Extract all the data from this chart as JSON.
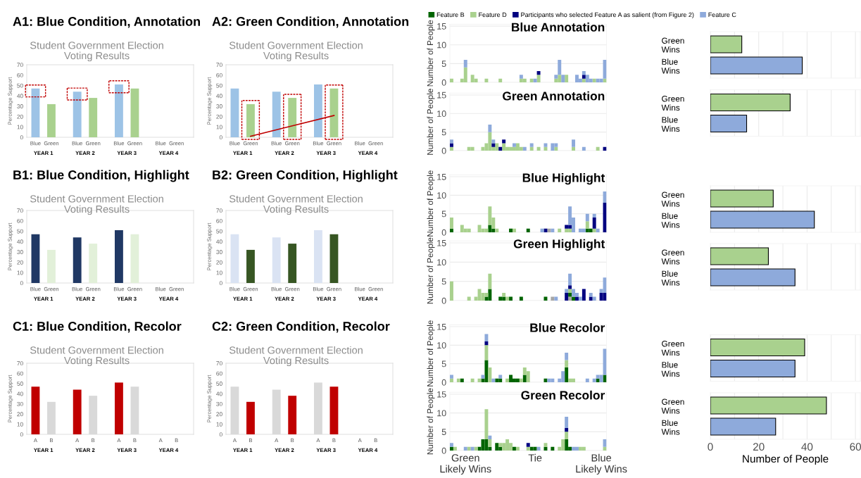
{
  "chart_data": [
    {
      "type": "bar",
      "title": "A1: Blue Condition, Annotation",
      "subtitle": "Student Government Election\nVoting Results",
      "ylabel": "Percentage Support",
      "categories": [
        "YEAR 1",
        "YEAR 2",
        "YEAR 3",
        "YEAR 4"
      ],
      "ylim": [
        0,
        70
      ],
      "yticks": [
        0,
        10,
        20,
        30,
        40,
        50,
        60,
        70
      ],
      "series": [
        {
          "name": "Blue",
          "color": "#9dc3e6",
          "values": [
            47,
            44,
            51,
            null
          ],
          "marker": "square"
        },
        {
          "name": "Green",
          "color": "#a9d18e",
          "values": [
            32,
            38,
            47,
            null
          ]
        }
      ]
    },
    {
      "type": "bar",
      "title": "A2: Green Condition, Annotation",
      "subtitle": "Student Government Election\nVoting Results",
      "ylabel": "Percentage Support",
      "categories": [
        "YEAR 1",
        "YEAR 2",
        "YEAR 3",
        "YEAR 4"
      ],
      "ylim": [
        0,
        70
      ],
      "yticks": [
        0,
        10,
        20,
        30,
        40,
        50,
        60,
        70
      ],
      "series": [
        {
          "name": "Blue",
          "color": "#9dc3e6",
          "values": [
            47,
            44,
            51,
            null
          ]
        },
        {
          "name": "Green",
          "color": "#a9d18e",
          "values": [
            32,
            38,
            47,
            null
          ],
          "line_style": "dashed"
        },
        {
          "type": "line",
          "color": "#c00000",
          "values": [
            1,
            11,
            21,
            null
          ]
        }
      ]
    },
    {
      "type": "bar",
      "stacked": true,
      "title": "Blue Annotation",
      "ylabel": "Number of People",
      "categories": [
        null,
        null,
        null,
        null,
        null,
        null,
        null,
        null,
        null,
        null,
        null,
        null,
        null,
        null,
        null,
        null,
        null,
        null,
        null,
        null,
        null,
        null,
        null,
        null,
        null,
        null,
        null,
        null,
        null,
        null,
        null,
        null,
        null,
        null,
        null,
        null,
        null,
        null,
        null,
        null,
        null,
        null,
        null,
        null,
        null
      ],
      "ylim": [
        0,
        15.5
      ],
      "yticks": [
        0,
        5,
        10,
        15
      ],
      "grid": "y",
      "tick_labels": "y",
      "legend": "top",
      "series": [
        {
          "name": "Feature B",
          "color": "#006400",
          "values": [
            0,
            0,
            0,
            0,
            0,
            0,
            0,
            0,
            0,
            0,
            0,
            0,
            0,
            0,
            0,
            0,
            0,
            0,
            0,
            0,
            0,
            0,
            0,
            0,
            0,
            0,
            0,
            0,
            0,
            0,
            0,
            0,
            0,
            0,
            0,
            0,
            0,
            0,
            0,
            0,
            0,
            0,
            0,
            0,
            0
          ]
        },
        {
          "name": "Feature D",
          "color": "#a9d18e",
          "values": [
            1,
            0,
            0,
            1,
            4,
            0,
            2,
            1,
            0,
            0,
            1,
            0,
            0,
            0,
            1,
            0,
            0,
            0,
            0,
            0,
            1,
            1,
            0,
            1,
            0,
            2,
            0,
            0,
            0,
            0,
            1,
            2,
            0,
            2,
            0,
            0,
            0,
            0,
            1,
            0,
            0,
            1,
            0,
            0,
            1
          ]
        },
        {
          "name": "Participants who selected Feature A as salient (from Figure 2)",
          "color": "#000080",
          "values": [
            0,
            0,
            0,
            0,
            0,
            0,
            0,
            0,
            0,
            0,
            0,
            0,
            0,
            0,
            0,
            0,
            0,
            0,
            0,
            0,
            0,
            0,
            0,
            0,
            0,
            1,
            0,
            0,
            0,
            0,
            0,
            0,
            0,
            0,
            0,
            0,
            0,
            0,
            1,
            0,
            0,
            0,
            0,
            0,
            0
          ]
        },
        {
          "name": "Feature C",
          "color": "#8eaadb",
          "values": [
            0,
            0,
            0,
            0,
            2,
            0,
            0,
            0,
            0,
            0,
            0,
            0,
            0,
            0,
            0,
            0,
            0,
            0,
            0,
            0,
            1,
            0,
            0,
            0,
            1,
            0,
            0,
            0,
            0,
            0,
            1,
            4,
            2,
            0,
            0,
            0,
            2,
            1,
            1,
            2,
            1,
            0,
            1,
            1,
            5
          ]
        }
      ]
    },
    {
      "type": "bar",
      "stacked": true,
      "title": "Green Annotation",
      "ylabel": "Number of People",
      "categories": [
        null,
        null,
        null,
        null,
        null,
        null,
        null,
        null,
        null,
        null,
        null,
        null,
        null,
        null,
        null,
        null,
        null,
        null,
        null,
        null,
        null,
        null,
        null,
        null,
        null,
        null,
        null,
        null,
        null,
        null,
        null,
        null,
        null,
        null,
        null,
        null,
        null,
        null,
        null,
        null,
        null,
        null,
        null,
        null,
        null
      ],
      "ylim": [
        0,
        15.5
      ],
      "yticks": [
        0,
        5,
        10,
        15
      ],
      "grid": "y",
      "tick_labels": "y",
      "series": [
        {
          "color": "#a9d18e",
          "values": [
            1,
            0,
            0,
            0,
            0,
            1,
            1,
            0,
            0,
            1,
            2,
            5,
            1,
            2,
            0,
            2,
            1,
            1,
            1,
            2,
            1,
            0,
            0,
            1,
            0,
            1,
            0,
            1,
            0,
            0,
            1,
            0,
            0,
            0,
            0,
            1,
            0,
            0,
            0,
            0,
            0,
            0,
            1,
            0,
            0
          ]
        },
        {
          "color": "#000080",
          "values": [
            1,
            0,
            0,
            0,
            0,
            0,
            0,
            0,
            0,
            0,
            0,
            0,
            1,
            0,
            1,
            1,
            0,
            0,
            0,
            0,
            0,
            0,
            0,
            0,
            0,
            0,
            0,
            0,
            0,
            0,
            0,
            0,
            0,
            0,
            0,
            0,
            0,
            0,
            0,
            0,
            0,
            0,
            0,
            0,
            1
          ]
        },
        {
          "color": "#8eaadb",
          "values": [
            1,
            0,
            0,
            0,
            0,
            0,
            0,
            0,
            0,
            0,
            0,
            2,
            1,
            0,
            0,
            0,
            0,
            0,
            1,
            0,
            0,
            1,
            0,
            1,
            0,
            0,
            0,
            1,
            0,
            2,
            1,
            0,
            0,
            0,
            0,
            2,
            0,
            0,
            1,
            0,
            0,
            0,
            0,
            0,
            0
          ]
        }
      ]
    },
    {
      "type": "bar",
      "orientation": "horizontal",
      "categories": [
        "Green\nWins",
        "Blue\nWins"
      ],
      "values": [
        13,
        38
      ],
      "colors": [
        "#a9d18e",
        "#8eaadb"
      ],
      "xlim": [
        0,
        62
      ],
      "xticks": [
        0,
        {
          "value": 10,
          "label": null
        },
        20,
        {
          "value": 30,
          "label": null
        },
        40,
        {
          "value": 50,
          "label": null
        },
        60
      ],
      "grid": "x",
      "tick_labels": "y"
    },
    {
      "type": "bar",
      "orientation": "horizontal",
      "categories": [
        "Green\nWins",
        "Blue\nWins"
      ],
      "values": [
        33,
        15
      ],
      "colors": [
        "#a9d18e",
        "#8eaadb"
      ],
      "xlim": [
        0,
        62
      ],
      "xticks": [
        0,
        {
          "value": 10,
          "label": null
        },
        20,
        {
          "value": 30,
          "label": null
        },
        40,
        {
          "value": 50,
          "label": null
        },
        60
      ],
      "grid": "x",
      "tick_labels": "y"
    },
    {
      "type": "bar",
      "title": "B1: Blue Condition, Highlight",
      "subtitle": "Student Government Election\nVoting Results",
      "ylabel": "Percentage Support",
      "categories": [
        "YEAR 1",
        "YEAR 2",
        "YEAR 3",
        "YEAR 4"
      ],
      "ylim": [
        0,
        70
      ],
      "yticks": [
        0,
        10,
        20,
        30,
        40,
        50,
        60,
        70
      ],
      "series": [
        {
          "name": "Blue",
          "color": "#203864",
          "values": [
            47,
            44,
            51,
            null
          ]
        },
        {
          "name": "Green",
          "color": "#e2f0d9",
          "values": [
            32,
            38,
            47,
            null
          ]
        }
      ]
    },
    {
      "type": "bar",
      "title": "B2: Green Condition, Highlight",
      "subtitle": "Student Government Election\nVoting Results",
      "ylabel": "Percentage Support",
      "categories": [
        "YEAR 1",
        "YEAR 2",
        "YEAR 3",
        "YEAR 4"
      ],
      "ylim": [
        0,
        70
      ],
      "yticks": [
        0,
        10,
        20,
        30,
        40,
        50,
        60,
        70
      ],
      "series": [
        {
          "name": "Blue",
          "color": "#dae3f3",
          "values": [
            47,
            44,
            51,
            null
          ]
        },
        {
          "name": "Green",
          "color": "#375623",
          "values": [
            32,
            38,
            47,
            null
          ]
        }
      ]
    },
    {
      "type": "bar",
      "stacked": true,
      "title": "Blue Highlight",
      "ylabel": "Number of People",
      "categories": [
        null,
        null,
        null,
        null,
        null,
        null,
        null,
        null,
        null,
        null,
        null,
        null,
        null,
        null,
        null,
        null,
        null,
        null,
        null,
        null,
        null,
        null,
        null,
        null,
        null,
        null,
        null,
        null,
        null,
        null,
        null,
        null,
        null,
        null,
        null,
        null,
        null,
        null,
        null,
        null,
        null,
        null,
        null,
        null,
        null
      ],
      "ylim": [
        0,
        15.5
      ],
      "yticks": [
        0,
        5,
        10,
        15
      ],
      "grid": "y",
      "tick_labels": "y",
      "series": [
        {
          "color": "#a6a6a6",
          "values": [
            0,
            0,
            0,
            0,
            0,
            0,
            0,
            0,
            0,
            0,
            0,
            0,
            0,
            0,
            0,
            0,
            0,
            0,
            0,
            0,
            0,
            0,
            0,
            0,
            0,
            0,
            0,
            0,
            1,
            0,
            0,
            0,
            0,
            0,
            0,
            0,
            0,
            0,
            0,
            0,
            0,
            0,
            0,
            0,
            0
          ]
        },
        {
          "color": "#006400",
          "values": [
            1,
            0,
            0,
            0,
            0,
            0,
            0,
            0,
            0,
            0,
            0,
            2,
            1,
            0,
            0,
            0,
            0,
            1,
            0,
            0,
            0,
            0,
            1,
            0,
            0,
            0,
            0,
            0,
            0,
            0,
            0,
            0,
            0,
            0,
            0,
            0,
            0,
            0,
            0,
            1,
            1,
            0,
            0,
            0,
            0
          ]
        },
        {
          "color": "#a9d18e",
          "values": [
            3,
            0,
            0,
            2,
            1,
            1,
            0,
            0,
            2,
            1,
            1,
            5,
            3,
            1,
            0,
            0,
            0,
            0,
            1,
            0,
            0,
            0,
            0,
            0,
            0,
            0,
            0,
            0,
            0,
            0,
            0,
            1,
            0,
            1,
            1,
            0,
            0,
            0,
            0,
            2,
            0,
            1,
            0,
            0,
            0
          ]
        },
        {
          "color": "#000080",
          "values": [
            0,
            0,
            0,
            0,
            0,
            0,
            0,
            0,
            0,
            0,
            0,
            0,
            0,
            0,
            0,
            0,
            0,
            0,
            0,
            0,
            0,
            0,
            0,
            0,
            0,
            0,
            0,
            1,
            0,
            0,
            0,
            0,
            0,
            1,
            1,
            0,
            0,
            0,
            0,
            0,
            0,
            3,
            0,
            0,
            8
          ]
        },
        {
          "color": "#8eaadb",
          "values": [
            0,
            0,
            0,
            0,
            0,
            0,
            0,
            0,
            0,
            0,
            0,
            0,
            0,
            0,
            0,
            0,
            0,
            0,
            0,
            0,
            0,
            0,
            0,
            0,
            0,
            0,
            1,
            0,
            0,
            1,
            0,
            0,
            0,
            0,
            5,
            4,
            0,
            1,
            1,
            2,
            0,
            1,
            1,
            0,
            3
          ]
        }
      ]
    },
    {
      "type": "bar",
      "stacked": true,
      "title": "Green Highlight",
      "ylabel": "Number of People",
      "categories": [
        null,
        null,
        null,
        null,
        null,
        null,
        null,
        null,
        null,
        null,
        null,
        null,
        null,
        null,
        null,
        null,
        null,
        null,
        null,
        null,
        null,
        null,
        null,
        null,
        null,
        null,
        null,
        null,
        null,
        null,
        null,
        null,
        null,
        null,
        null,
        null,
        null,
        null,
        null,
        null,
        null,
        null,
        null,
        null,
        null
      ],
      "ylim": [
        0,
        15.5
      ],
      "yticks": [
        0,
        5,
        10,
        15
      ],
      "grid": "y",
      "tick_labels": "y",
      "series": [
        {
          "color": "#a6a6a6",
          "values": [
            0,
            0,
            0,
            0,
            0,
            0,
            0,
            0,
            0,
            0,
            0,
            0,
            0,
            0,
            0,
            0,
            0,
            0,
            0,
            0,
            0,
            0,
            0,
            0,
            0,
            0,
            0,
            0,
            0,
            1,
            0,
            0,
            0,
            0,
            1,
            0,
            0,
            0,
            0,
            0,
            0,
            0,
            0,
            0,
            0
          ]
        },
        {
          "color": "#006400",
          "values": [
            0,
            0,
            0,
            0,
            0,
            0,
            0,
            0,
            0,
            0,
            1,
            3,
            0,
            0,
            1,
            1,
            0,
            1,
            0,
            0,
            1,
            0,
            0,
            0,
            0,
            0,
            0,
            1,
            0,
            0,
            0,
            0,
            0,
            0,
            1,
            1,
            0,
            0,
            0,
            0,
            0,
            0,
            0,
            0,
            0
          ]
        },
        {
          "color": "#a9d18e",
          "values": [
            5,
            0,
            0,
            0,
            0,
            1,
            0,
            1,
            3,
            2,
            1,
            4,
            0,
            0,
            0,
            1,
            1,
            0,
            0,
            0,
            0,
            0,
            0,
            0,
            0,
            0,
            0,
            0,
            0,
            0,
            0,
            0,
            0,
            0,
            1,
            0,
            0,
            0,
            0,
            0,
            0,
            0,
            0,
            0,
            0
          ]
        },
        {
          "color": "#000080",
          "values": [
            0,
            0,
            0,
            0,
            0,
            0,
            0,
            0,
            0,
            0,
            0,
            0,
            0,
            0,
            0,
            0,
            0,
            0,
            0,
            0,
            0,
            0,
            0,
            0,
            0,
            0,
            0,
            0,
            0,
            0,
            0,
            0,
            0,
            2,
            1,
            0,
            1,
            0,
            3,
            0,
            1,
            0,
            0,
            2,
            2
          ]
        },
        {
          "color": "#8eaadb",
          "values": [
            0,
            0,
            0,
            0,
            0,
            0,
            0,
            0,
            0,
            0,
            0,
            0,
            0,
            0,
            0,
            0,
            0,
            0,
            0,
            0,
            0,
            0,
            0,
            0,
            0,
            0,
            0,
            0,
            0,
            0,
            1,
            0,
            0,
            1,
            3,
            2,
            1,
            1,
            0,
            0,
            1,
            1,
            0,
            1,
            4
          ]
        }
      ]
    },
    {
      "type": "bar",
      "orientation": "horizontal",
      "categories": [
        "Green\nWins",
        "Blue\nWins"
      ],
      "values": [
        26,
        43
      ],
      "colors": [
        "#a9d18e",
        "#8eaadb"
      ],
      "xlim": [
        0,
        62
      ],
      "xticks": [
        0,
        {
          "value": 10,
          "label": null
        },
        20,
        {
          "value": 30,
          "label": null
        },
        40,
        {
          "value": 50,
          "label": null
        },
        60
      ],
      "grid": "x",
      "tick_labels": "y"
    },
    {
      "type": "bar",
      "orientation": "horizontal",
      "categories": [
        "Green\nWins",
        "Blue\nWins"
      ],
      "values": [
        24,
        35
      ],
      "colors": [
        "#a9d18e",
        "#8eaadb"
      ],
      "xlim": [
        0,
        62
      ],
      "xticks": [
        0,
        {
          "value": 10,
          "label": null
        },
        20,
        {
          "value": 30,
          "label": null
        },
        40,
        {
          "value": 50,
          "label": null
        },
        60
      ],
      "grid": "x",
      "tick_labels": "y"
    },
    {
      "type": "bar",
      "title": "C1: Blue Condition, Recolor",
      "subtitle": "Student Government Election\nVoting Results",
      "ylabel": "Percentage Support",
      "categories": [
        "YEAR 1",
        "YEAR 2",
        "YEAR 3",
        "YEAR 4"
      ],
      "ylim": [
        0,
        70
      ],
      "yticks": [
        0,
        10,
        20,
        30,
        40,
        50,
        60,
        70
      ],
      "series": [
        {
          "name": "A",
          "color": "#c00000",
          "values": [
            47,
            44,
            51,
            null
          ]
        },
        {
          "name": "B",
          "color": "#d9d9d9",
          "values": [
            32,
            38,
            47,
            null
          ]
        }
      ]
    },
    {
      "type": "bar",
      "title": "C2: Green Condition, Recolor",
      "subtitle": "Student Government Election\nVoting Results",
      "ylabel": "Percentage Support",
      "categories": [
        "YEAR 1",
        "YEAR 2",
        "YEAR 3",
        "YEAR 4"
      ],
      "ylim": [
        0,
        70
      ],
      "yticks": [
        0,
        10,
        20,
        30,
        40,
        50,
        60,
        70
      ],
      "series": [
        {
          "name": "A",
          "color": "#d9d9d9",
          "values": [
            47,
            44,
            51,
            null
          ]
        },
        {
          "name": "B",
          "color": "#c00000",
          "values": [
            32,
            38,
            47,
            null
          ]
        }
      ]
    },
    {
      "type": "bar",
      "stacked": true,
      "title": "Blue Recolor",
      "ylabel": "Number of People",
      "categories": [
        null,
        null,
        null,
        null,
        null,
        null,
        null,
        null,
        null,
        null,
        null,
        null,
        null,
        null,
        null,
        null,
        null,
        null,
        null,
        null,
        null,
        null,
        null,
        null,
        null,
        null,
        null,
        null,
        null,
        null,
        null,
        null,
        null,
        null,
        null,
        null,
        null,
        null,
        null,
        null,
        null,
        null,
        null,
        null,
        null
      ],
      "ylim": [
        0,
        15.5
      ],
      "yticks": [
        0,
        5,
        10,
        15
      ],
      "grid": "y",
      "tick_labels": "y",
      "series": [
        {
          "color": "#006400",
          "values": [
            0,
            0,
            0,
            1,
            0,
            0,
            0,
            0,
            0,
            1,
            6,
            0,
            0,
            1,
            1,
            0,
            0,
            2,
            1,
            1,
            0,
            2,
            0,
            0,
            0,
            0,
            0,
            1,
            0,
            0,
            0,
            0,
            0,
            4,
            0,
            0,
            0,
            0,
            0,
            0,
            0,
            0,
            1,
            0,
            2
          ]
        },
        {
          "color": "#a9d18e",
          "values": [
            1,
            0,
            1,
            0,
            0,
            0,
            1,
            0,
            1,
            0,
            4,
            4,
            0,
            0,
            0,
            0,
            1,
            0,
            0,
            0,
            1,
            2,
            3,
            0,
            0,
            0,
            0,
            0,
            0,
            0,
            0,
            0,
            0,
            2,
            1,
            1,
            0,
            0,
            0,
            0,
            0,
            0,
            0,
            0,
            0
          ]
        },
        {
          "color": "#000080",
          "values": [
            0,
            0,
            0,
            0,
            0,
            0,
            0,
            0,
            0,
            0,
            1,
            0,
            0,
            0,
            0,
            0,
            0,
            0,
            0,
            0,
            0,
            0,
            0,
            0,
            0,
            0,
            0,
            0,
            0,
            0,
            0,
            0,
            0,
            0,
            0,
            0,
            0,
            0,
            0,
            0,
            0,
            0,
            0,
            0,
            0
          ]
        },
        {
          "color": "#8eaadb",
          "values": [
            1,
            0,
            0,
            0,
            0,
            0,
            0,
            0,
            0,
            1,
            2,
            0,
            1,
            0,
            1,
            0,
            0,
            0,
            0,
            0,
            0,
            0,
            0,
            0,
            0,
            0,
            0,
            0,
            1,
            1,
            0,
            1,
            3,
            2,
            0,
            0,
            0,
            0,
            0,
            1,
            0,
            1,
            1,
            2,
            7
          ]
        }
      ]
    },
    {
      "type": "bar",
      "stacked": true,
      "title": "Green Recolor",
      "ylabel": "Number of People",
      "categories": [
        null,
        null,
        null,
        null,
        "Green\nLikely Wins",
        null,
        null,
        null,
        null,
        null,
        null,
        null,
        null,
        null,
        null,
        null,
        null,
        null,
        null,
        null,
        null,
        null,
        null,
        null,
        "Tie",
        null,
        null,
        null,
        null,
        null,
        null,
        null,
        null,
        null,
        null,
        null,
        null,
        null,
        null,
        null,
        null,
        null,
        null,
        "Blue\nLikely Wins",
        null
      ],
      "ylim": [
        0,
        15.5
      ],
      "yticks": [
        0,
        5,
        10,
        15
      ],
      "grid": "y",
      "series": [
        {
          "color": "#006400",
          "values": [
            1,
            0,
            0,
            0,
            0,
            0,
            0,
            0,
            1,
            3,
            3,
            1,
            0,
            2,
            1,
            0,
            0,
            0,
            1,
            0,
            0,
            0,
            0,
            1,
            1,
            0,
            0,
            1,
            0,
            1,
            0,
            0,
            0,
            3,
            1,
            0,
            0,
            0,
            0,
            0,
            0,
            0,
            0,
            0,
            0
          ]
        },
        {
          "color": "#a9d18e",
          "values": [
            0,
            1,
            0,
            0,
            0,
            1,
            0,
            1,
            0,
            0,
            8,
            2,
            0,
            0,
            1,
            2,
            3,
            2,
            0,
            1,
            0,
            0,
            1,
            0,
            0,
            0,
            0,
            1,
            0,
            0,
            0,
            1,
            3,
            2,
            0,
            0,
            0,
            1,
            1,
            0,
            0,
            0,
            0,
            0,
            1
          ]
        },
        {
          "color": "#000080",
          "values": [
            0,
            0,
            0,
            0,
            0,
            0,
            0,
            0,
            0,
            0,
            0,
            0,
            0,
            0,
            0,
            0,
            0,
            0,
            0,
            0,
            0,
            0,
            1,
            0,
            0,
            0,
            0,
            0,
            0,
            0,
            0,
            0,
            0,
            1,
            0,
            0,
            0,
            0,
            0,
            0,
            0,
            0,
            0,
            0,
            0
          ]
        },
        {
          "color": "#8eaadb",
          "values": [
            1,
            0,
            0,
            0,
            1,
            0,
            1,
            0,
            0,
            0,
            0,
            1,
            0,
            0,
            0,
            0,
            0,
            0,
            0,
            0,
            0,
            0,
            0,
            0,
            0,
            1,
            0,
            0,
            0,
            0,
            0,
            0,
            0,
            3,
            0,
            1,
            1,
            0,
            0,
            0,
            0,
            0,
            0,
            0,
            2
          ]
        }
      ]
    },
    {
      "type": "bar",
      "orientation": "horizontal",
      "categories": [
        "Green\nWins",
        "Blue\nWins"
      ],
      "values": [
        39,
        35
      ],
      "colors": [
        "#a9d18e",
        "#8eaadb"
      ],
      "xlim": [
        0,
        62
      ],
      "xticks": [
        0,
        {
          "value": 10,
          "label": null
        },
        20,
        {
          "value": 30,
          "label": null
        },
        40,
        {
          "value": 50,
          "label": null
        },
        60
      ],
      "grid": "x",
      "tick_labels": "y"
    },
    {
      "type": "bar",
      "orientation": "horizontal",
      "xlabel": "Number of People",
      "categories": [
        "Green\nWins",
        "Blue\nWins"
      ],
      "values": [
        48,
        27
      ],
      "colors": [
        "#a9d18e",
        "#8eaadb"
      ],
      "xlim": [
        0,
        62
      ],
      "xticks": [
        0,
        {
          "value": 10,
          "label": null
        },
        20,
        {
          "value": 30,
          "label": null
        },
        40,
        {
          "value": 50,
          "label": null
        },
        60
      ],
      "grid": "x"
    }
  ]
}
